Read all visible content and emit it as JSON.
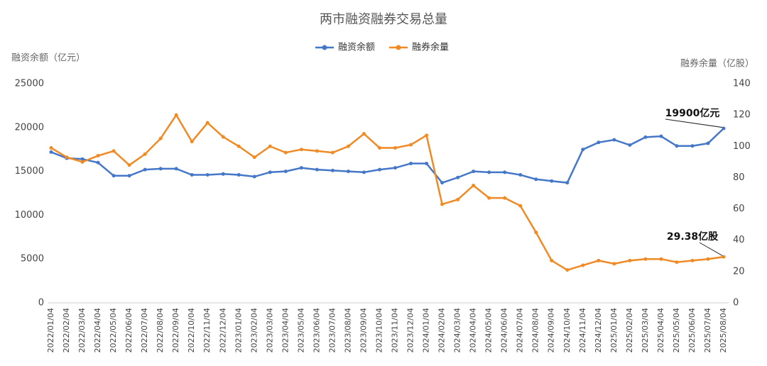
{
  "chart_data": {
    "type": "line",
    "title": "两市融资融券交易总量",
    "y_label": "融资余额（亿元）",
    "y2_label": "融券余量（亿股）",
    "categories": [
      "2022/01/04",
      "2022/02/04",
      "2022/03/04",
      "2022/04/04",
      "2022/05/04",
      "2022/06/04",
      "2022/07/04",
      "2022/08/04",
      "2022/09/04",
      "2022/10/04",
      "2022/11/04",
      "2022/12/04",
      "2023/01/04",
      "2023/02/04",
      "2023/03/04",
      "2023/04/04",
      "2023/05/04",
      "2023/06/04",
      "2023/07/04",
      "2023/08/04",
      "2023/09/04",
      "2023/10/04",
      "2023/11/04",
      "2023/12/04",
      "2024/01/04",
      "2024/02/04",
      "2024/03/04",
      "2024/04/04",
      "2024/05/04",
      "2024/06/04",
      "2024/07/04",
      "2024/08/04",
      "2024/09/04",
      "2024/10/04",
      "2024/11/04",
      "2024/12/04",
      "2025/01/04",
      "2025/02/04",
      "2025/03/04",
      "2025/04/04",
      "2025/05/04",
      "2025/06/04",
      "2025/07/04",
      "2025/08/04"
    ],
    "series": [
      {
        "name": "融资余额",
        "color": "#4577c8",
        "axis": "y",
        "values": [
          17200,
          16500,
          16400,
          16000,
          14500,
          14500,
          15200,
          15300,
          15300,
          14600,
          14600,
          14700,
          14600,
          14400,
          14900,
          15000,
          15400,
          15200,
          15100,
          15000,
          14900,
          15200,
          15400,
          15900,
          15900,
          13700,
          14300,
          15000,
          14900,
          14900,
          14600,
          14100,
          13900,
          13700,
          17500,
          18300,
          18600,
          18000,
          18900,
          19000,
          17900,
          17900,
          18200,
          19900
        ]
      },
      {
        "name": "融券余量",
        "color": "#f08a24",
        "axis": "y2",
        "values": [
          99,
          93,
          90,
          94,
          97,
          88,
          95,
          105,
          120,
          103,
          115,
          106,
          100,
          93,
          100,
          96,
          98,
          97,
          96,
          100,
          108,
          99,
          99,
          101,
          107,
          63,
          66,
          75,
          67,
          67,
          62,
          45,
          27,
          21,
          24,
          27,
          25,
          27,
          28,
          28,
          26,
          27,
          28,
          29.38
        ]
      }
    ],
    "ylim": [
      0,
      25000
    ],
    "yticks": [
      0,
      5000,
      10000,
      15000,
      20000,
      25000
    ],
    "y2lim": [
      0,
      140
    ],
    "y2ticks": [
      0,
      20,
      40,
      60,
      80,
      100,
      120,
      140
    ],
    "grid": false,
    "annotations": [
      "19900亿元",
      "29.38亿股"
    ]
  }
}
